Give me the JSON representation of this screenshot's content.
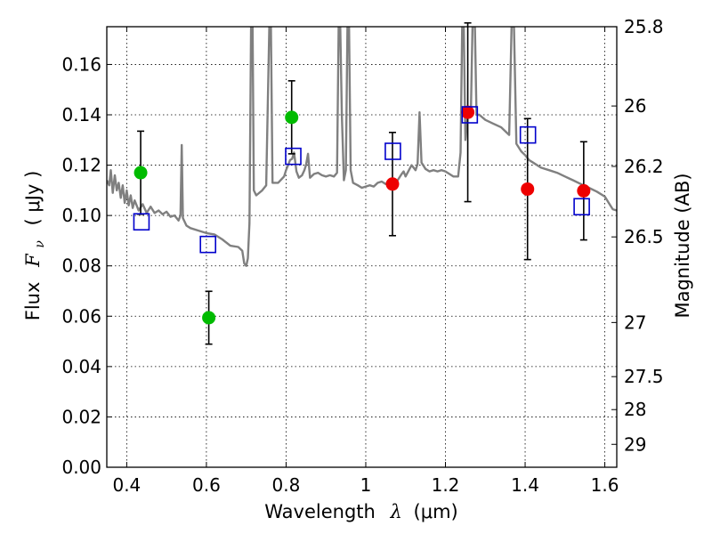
{
  "chart_data": {
    "type": "scatter",
    "xlabel_prefix": "Wavelength",
    "xlabel_symbol": "λ",
    "xlabel_unit": "(μm)",
    "ylabel_prefix": "Flux",
    "ylabel_symbol": "F",
    "ylabel_sub": "ν",
    "ylabel_unit": "( μJy )",
    "y2label": "Magnitude (AB)",
    "xlim": [
      0.35,
      1.63
    ],
    "ylim": [
      0.0,
      0.175
    ],
    "grid": true,
    "x_ticks": [
      0.4,
      0.6,
      0.8,
      1.0,
      1.2,
      1.4,
      1.6
    ],
    "x_tick_labels": [
      "0.4",
      "0.6",
      "0.8",
      "1",
      "1.2",
      "1.4",
      "1.6"
    ],
    "y_ticks": [
      0.0,
      0.02,
      0.04,
      0.06,
      0.08,
      0.1,
      0.12,
      0.14,
      0.16
    ],
    "y_tick_labels": [
      "0.00",
      "0.02",
      "0.04",
      "0.06",
      "0.08",
      "0.10",
      "0.12",
      "0.14",
      "0.16"
    ],
    "y2_ticks": [
      {
        "label": "25.8",
        "flux": 0.175
      },
      {
        "label": "26",
        "flux": 0.1435
      },
      {
        "label": "26.2",
        "flux": 0.1195
      },
      {
        "label": "26.5",
        "flux": 0.0915
      },
      {
        "label": "27",
        "flux": 0.0575
      },
      {
        "label": "27.5",
        "flux": 0.036
      },
      {
        "label": "28",
        "flux": 0.0229
      },
      {
        "label": "29",
        "flux": 0.0091
      }
    ],
    "series": [
      {
        "name": "green-photometry",
        "color": "#00bb00",
        "marker": "circle",
        "points": [
          {
            "x": 0.435,
            "y": 0.117,
            "err": 0.0165
          },
          {
            "x": 0.606,
            "y": 0.0594,
            "err": 0.0105
          },
          {
            "x": 0.814,
            "y": 0.139,
            "err": 0.0145
          }
        ]
      },
      {
        "name": "red-photometry",
        "color": "#ee0000",
        "marker": "circle",
        "points": [
          {
            "x": 1.067,
            "y": 0.1125,
            "err": 0.0205
          },
          {
            "x": 1.256,
            "y": 0.141,
            "err": 0.0355
          },
          {
            "x": 1.406,
            "y": 0.1105,
            "err": 0.028
          },
          {
            "x": 1.547,
            "y": 0.1098,
            "err": 0.0195
          }
        ]
      },
      {
        "name": "model-photometry",
        "color": "#0000cc",
        "marker": "open-square",
        "points": [
          {
            "x": 0.437,
            "y": 0.0975
          },
          {
            "x": 0.604,
            "y": 0.0885
          },
          {
            "x": 0.818,
            "y": 0.1235
          },
          {
            "x": 1.068,
            "y": 0.1255
          },
          {
            "x": 1.261,
            "y": 0.14
          },
          {
            "x": 1.407,
            "y": 0.132
          },
          {
            "x": 1.542,
            "y": 0.1035
          }
        ]
      }
    ],
    "model_spectrum": {
      "color": "#808080",
      "points": [
        [
          0.35,
          0.114
        ],
        [
          0.356,
          0.112
        ],
        [
          0.36,
          0.118
        ],
        [
          0.365,
          0.109
        ],
        [
          0.37,
          0.116
        ],
        [
          0.375,
          0.11
        ],
        [
          0.38,
          0.113
        ],
        [
          0.385,
          0.107
        ],
        [
          0.39,
          0.112
        ],
        [
          0.395,
          0.105
        ],
        [
          0.4,
          0.11
        ],
        [
          0.405,
          0.104
        ],
        [
          0.41,
          0.108
        ],
        [
          0.415,
          0.103
        ],
        [
          0.42,
          0.106
        ],
        [
          0.43,
          0.102
        ],
        [
          0.44,
          0.1045
        ],
        [
          0.45,
          0.101
        ],
        [
          0.46,
          0.1035
        ],
        [
          0.47,
          0.101
        ],
        [
          0.48,
          0.102
        ],
        [
          0.49,
          0.1005
        ],
        [
          0.5,
          0.1015
        ],
        [
          0.51,
          0.0995
        ],
        [
          0.52,
          0.1
        ],
        [
          0.53,
          0.098
        ],
        [
          0.535,
          0.1
        ],
        [
          0.538,
          0.128
        ],
        [
          0.541,
          0.099
        ],
        [
          0.55,
          0.096
        ],
        [
          0.56,
          0.095
        ],
        [
          0.58,
          0.094
        ],
        [
          0.6,
          0.093
        ],
        [
          0.62,
          0.0925
        ],
        [
          0.64,
          0.0905
        ],
        [
          0.66,
          0.088
        ],
        [
          0.68,
          0.0875
        ],
        [
          0.69,
          0.086
        ],
        [
          0.695,
          0.081
        ],
        [
          0.7,
          0.08
        ],
        [
          0.704,
          0.083
        ],
        [
          0.708,
          0.097
        ],
        [
          0.712,
          0.175
        ],
        [
          0.716,
          0.175
        ],
        [
          0.719,
          0.11
        ],
        [
          0.725,
          0.108
        ],
        [
          0.74,
          0.11
        ],
        [
          0.75,
          0.112
        ],
        [
          0.758,
          0.175
        ],
        [
          0.762,
          0.175
        ],
        [
          0.766,
          0.113
        ],
        [
          0.78,
          0.113
        ],
        [
          0.795,
          0.1155
        ],
        [
          0.8,
          0.118
        ],
        [
          0.805,
          0.12
        ],
        [
          0.81,
          0.122
        ],
        [
          0.815,
          0.1225
        ],
        [
          0.82,
          0.125
        ],
        [
          0.826,
          0.1175
        ],
        [
          0.832,
          0.115
        ],
        [
          0.84,
          0.116
        ],
        [
          0.846,
          0.118
        ],
        [
          0.85,
          0.12
        ],
        [
          0.855,
          0.1245
        ],
        [
          0.86,
          0.115
        ],
        [
          0.87,
          0.1165
        ],
        [
          0.88,
          0.117
        ],
        [
          0.89,
          0.116
        ],
        [
          0.9,
          0.1155
        ],
        [
          0.91,
          0.116
        ],
        [
          0.92,
          0.1155
        ],
        [
          0.928,
          0.117
        ],
        [
          0.932,
          0.175
        ],
        [
          0.936,
          0.175
        ],
        [
          0.94,
          0.14
        ],
        [
          0.945,
          0.114
        ],
        [
          0.95,
          0.118
        ],
        [
          0.954,
          0.175
        ],
        [
          0.958,
          0.175
        ],
        [
          0.962,
          0.118
        ],
        [
          0.968,
          0.113
        ],
        [
          0.98,
          0.112
        ],
        [
          0.99,
          0.111
        ],
        [
          1.0,
          0.1115
        ],
        [
          1.01,
          0.112
        ],
        [
          1.02,
          0.1115
        ],
        [
          1.03,
          0.113
        ],
        [
          1.04,
          0.1135
        ],
        [
          1.05,
          0.1125
        ],
        [
          1.06,
          0.1135
        ],
        [
          1.07,
          0.112
        ],
        [
          1.08,
          0.114
        ],
        [
          1.09,
          0.1165
        ],
        [
          1.095,
          0.1175
        ],
        [
          1.1,
          0.1155
        ],
        [
          1.11,
          0.1185
        ],
        [
          1.115,
          0.12
        ],
        [
          1.12,
          0.119
        ],
        [
          1.125,
          0.118
        ],
        [
          1.13,
          0.1205
        ],
        [
          1.135,
          0.141
        ],
        [
          1.14,
          0.121
        ],
        [
          1.15,
          0.1185
        ],
        [
          1.16,
          0.1175
        ],
        [
          1.17,
          0.118
        ],
        [
          1.18,
          0.1175
        ],
        [
          1.19,
          0.118
        ],
        [
          1.2,
          0.1175
        ],
        [
          1.21,
          0.1165
        ],
        [
          1.22,
          0.1155
        ],
        [
          1.232,
          0.1155
        ],
        [
          1.238,
          0.125
        ],
        [
          1.242,
          0.175
        ],
        [
          1.246,
          0.175
        ],
        [
          1.25,
          0.13
        ],
        [
          1.256,
          0.1395
        ],
        [
          1.264,
          0.143
        ],
        [
          1.268,
          0.175
        ],
        [
          1.274,
          0.175
        ],
        [
          1.278,
          0.14
        ],
        [
          1.285,
          0.14
        ],
        [
          1.3,
          0.138
        ],
        [
          1.32,
          0.1365
        ],
        [
          1.34,
          0.135
        ],
        [
          1.36,
          0.132
        ],
        [
          1.366,
          0.175
        ],
        [
          1.372,
          0.175
        ],
        [
          1.378,
          0.1285
        ],
        [
          1.39,
          0.1255
        ],
        [
          1.4,
          0.124
        ],
        [
          1.41,
          0.122
        ],
        [
          1.42,
          0.121
        ],
        [
          1.44,
          0.119
        ],
        [
          1.46,
          0.118
        ],
        [
          1.48,
          0.117
        ],
        [
          1.5,
          0.1155
        ],
        [
          1.52,
          0.114
        ],
        [
          1.54,
          0.1125
        ],
        [
          1.56,
          0.111
        ],
        [
          1.58,
          0.1095
        ],
        [
          1.6,
          0.1075
        ],
        [
          1.61,
          0.105
        ],
        [
          1.62,
          0.1025
        ],
        [
          1.63,
          0.102
        ]
      ]
    }
  }
}
